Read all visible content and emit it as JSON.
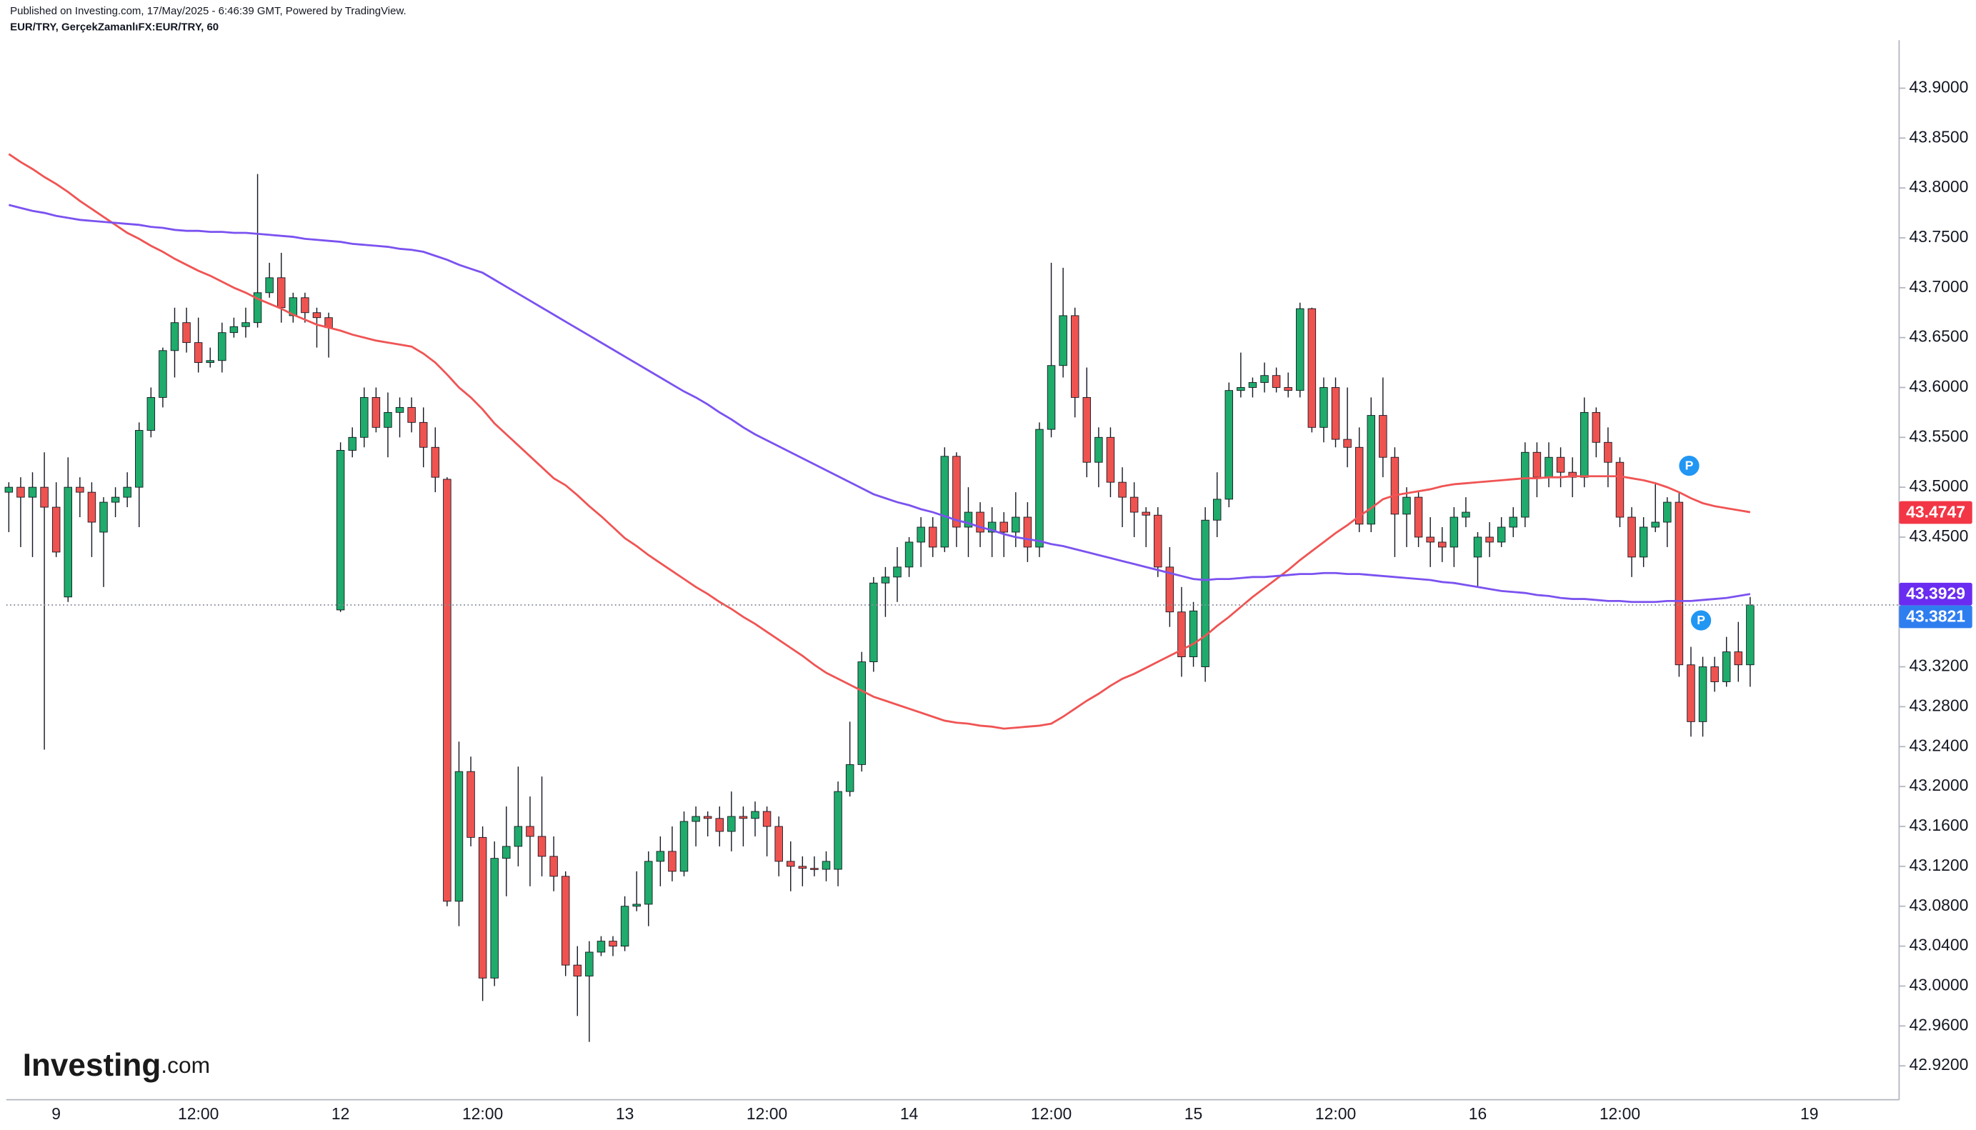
{
  "chart_data": {
    "type": "candlestick",
    "published": "Published on Investing.com, 17/May/2025 - 6:46:39 GMT, Powered by TradingView.",
    "title": "EUR/TRY, GerçekZamanlıFX:EUR/TRY, 60",
    "logo": {
      "brand": "Investing",
      "suffix": ".com"
    },
    "categories": [
      null,
      null,
      null,
      null,
      "9",
      null,
      null,
      null,
      null,
      null,
      null,
      null,
      null,
      null,
      null,
      null,
      "12:00",
      null,
      null,
      null,
      null,
      null,
      null,
      null,
      null,
      null,
      null,
      null,
      "12",
      null,
      null,
      null,
      null,
      null,
      null,
      null,
      null,
      null,
      null,
      null,
      "12:00",
      null,
      null,
      null,
      null,
      null,
      null,
      null,
      null,
      null,
      null,
      null,
      "13",
      null,
      null,
      null,
      null,
      null,
      null,
      null,
      null,
      null,
      null,
      null,
      "12:00",
      null,
      null,
      null,
      null,
      null,
      null,
      null,
      null,
      null,
      null,
      null,
      "14",
      null,
      null,
      null,
      null,
      null,
      null,
      null,
      null,
      null,
      null,
      null,
      "12:00",
      null,
      null,
      null,
      null,
      null,
      null,
      null,
      null,
      null,
      null,
      null,
      "15",
      null,
      null,
      null,
      null,
      null,
      null,
      null,
      null,
      null,
      null,
      null,
      "12:00",
      null,
      null,
      null,
      null,
      null,
      null,
      null,
      null,
      null,
      null,
      null,
      "16",
      null,
      null,
      null,
      null,
      null,
      null,
      null,
      null,
      null,
      null,
      null,
      "12:00",
      null,
      null,
      null,
      null,
      null,
      null,
      null,
      null,
      null,
      null,
      null,
      null,
      null,
      null,
      null,
      "19"
    ],
    "open": [
      43.495,
      43.5,
      43.49,
      43.5,
      43.48,
      43.39,
      43.5,
      43.495,
      43.455,
      43.485,
      43.49,
      43.5,
      43.557,
      43.59,
      43.637,
      43.665,
      43.645,
      43.625,
      43.627,
      43.655,
      43.661,
      43.665,
      43.695,
      43.71,
      43.672,
      43.69,
      43.675,
      43.67,
      43.377,
      43.537,
      43.55,
      43.59,
      43.56,
      43.575,
      43.58,
      43.565,
      43.54,
      43.508,
      43.085,
      43.215,
      43.149,
      43.008,
      43.128,
      43.14,
      43.16,
      43.15,
      43.13,
      43.11,
      43.021,
      43.01,
      43.034,
      43.045,
      43.04,
      43.08,
      43.082,
      43.125,
      43.135,
      43.115,
      43.165,
      43.17,
      43.168,
      43.155,
      43.17,
      43.168,
      43.175,
      43.16,
      43.125,
      43.12,
      43.118,
      43.117,
      43.117,
      43.195,
      43.222,
      43.325,
      43.404,
      43.41,
      43.42,
      43.445,
      43.46,
      43.44,
      43.531,
      43.46,
      43.475,
      43.455,
      43.465,
      43.455,
      43.47,
      43.44,
      43.558,
      43.622,
      43.672,
      43.59,
      43.525,
      43.55,
      43.505,
      43.49,
      43.475,
      43.472,
      43.42,
      43.375,
      43.33,
      43.32,
      43.467,
      43.488,
      43.597,
      43.6,
      43.605,
      43.612,
      43.6,
      43.597,
      43.679,
      43.56,
      43.6,
      43.548,
      43.54,
      43.463,
      43.572,
      43.53,
      43.473,
      43.49,
      43.45,
      43.445,
      43.44,
      43.47,
      43.43,
      43.45,
      43.445,
      43.46,
      43.47,
      43.535,
      43.51,
      43.53,
      43.515,
      43.51,
      43.575,
      43.545,
      43.525,
      43.47,
      43.43,
      43.46,
      43.465,
      43.485,
      43.322,
      43.265,
      43.32,
      43.305,
      43.335,
      43.322,
      null,
      null,
      null,
      null,
      null
    ],
    "high": [
      43.505,
      43.51,
      43.515,
      43.535,
      43.505,
      43.53,
      43.51,
      43.505,
      43.49,
      43.5,
      43.515,
      43.565,
      43.6,
      43.64,
      43.68,
      43.68,
      43.67,
      43.64,
      43.665,
      43.67,
      43.68,
      43.814,
      43.725,
      43.735,
      43.695,
      43.695,
      43.68,
      43.675,
      43.545,
      43.56,
      43.6,
      43.6,
      43.595,
      43.59,
      43.59,
      43.58,
      43.56,
      43.51,
      43.245,
      43.23,
      43.16,
      43.145,
      43.18,
      43.22,
      43.19,
      43.21,
      43.15,
      43.115,
      43.04,
      43.045,
      43.05,
      43.05,
      43.09,
      43.115,
      43.135,
      43.15,
      43.16,
      43.175,
      43.18,
      43.175,
      43.18,
      43.195,
      43.18,
      43.185,
      43.18,
      43.17,
      43.145,
      43.13,
      43.13,
      43.135,
      43.205,
      43.265,
      43.335,
      43.41,
      43.42,
      43.44,
      43.45,
      43.47,
      43.47,
      43.54,
      43.535,
      43.5,
      43.485,
      43.48,
      43.475,
      43.495,
      43.485,
      43.565,
      43.725,
      43.72,
      43.68,
      43.62,
      43.56,
      43.56,
      43.52,
      43.505,
      43.48,
      43.48,
      43.44,
      43.4,
      43.385,
      43.48,
      43.515,
      43.605,
      43.635,
      43.61,
      43.625,
      43.62,
      43.615,
      43.685,
      43.68,
      43.61,
      43.61,
      43.6,
      43.56,
      43.59,
      43.61,
      43.54,
      43.5,
      43.495,
      43.47,
      43.46,
      43.48,
      43.49,
      43.455,
      43.465,
      43.47,
      43.48,
      43.545,
      43.545,
      43.545,
      43.54,
      43.53,
      43.59,
      43.58,
      43.56,
      43.53,
      43.48,
      43.47,
      43.505,
      43.49,
      43.495,
      43.34,
      43.33,
      43.33,
      43.35,
      43.365,
      43.39,
      null,
      null,
      null,
      null,
      null
    ],
    "low": [
      43.455,
      43.44,
      43.43,
      43.237,
      43.43,
      43.385,
      43.47,
      43.43,
      43.4,
      43.47,
      43.48,
      43.46,
      43.55,
      43.58,
      43.61,
      43.635,
      43.615,
      43.62,
      43.615,
      43.65,
      43.65,
      43.66,
      43.69,
      43.665,
      43.665,
      43.665,
      43.64,
      43.63,
      43.375,
      43.53,
      43.54,
      43.555,
      43.53,
      43.55,
      43.555,
      43.52,
      43.495,
      43.08,
      43.06,
      43.14,
      42.985,
      43.0,
      43.09,
      43.12,
      43.1,
      43.11,
      43.095,
      43.01,
      42.97,
      42.944,
      43.03,
      43.03,
      43.035,
      43.075,
      43.06,
      43.1,
      43.105,
      43.11,
      43.14,
      43.15,
      43.14,
      43.135,
      43.14,
      43.15,
      43.13,
      43.11,
      43.095,
      43.1,
      43.11,
      43.105,
      43.1,
      43.19,
      43.215,
      43.315,
      43.37,
      43.385,
      43.41,
      43.42,
      43.43,
      43.435,
      43.44,
      43.43,
      43.44,
      43.43,
      43.43,
      43.44,
      43.425,
      43.43,
      43.55,
      43.61,
      43.57,
      43.51,
      43.5,
      43.49,
      43.46,
      43.45,
      43.44,
      43.41,
      43.36,
      43.31,
      43.32,
      43.305,
      43.45,
      43.48,
      43.59,
      43.59,
      43.595,
      43.595,
      43.59,
      43.59,
      43.555,
      43.545,
      43.54,
      43.52,
      43.455,
      43.455,
      43.51,
      43.43,
      43.44,
      43.44,
      43.42,
      43.425,
      43.42,
      43.46,
      43.4,
      43.43,
      43.44,
      43.45,
      43.46,
      43.49,
      43.5,
      43.5,
      43.49,
      43.5,
      43.53,
      43.5,
      43.46,
      43.41,
      43.42,
      43.455,
      43.44,
      43.31,
      43.25,
      43.25,
      43.295,
      43.3,
      43.305,
      43.3,
      null,
      null,
      null,
      null,
      null
    ],
    "close": [
      43.5,
      43.49,
      43.5,
      43.48,
      43.435,
      43.5,
      43.495,
      43.465,
      43.485,
      43.49,
      43.5,
      43.557,
      43.59,
      43.637,
      43.665,
      43.645,
      43.625,
      43.627,
      43.655,
      43.661,
      43.665,
      43.695,
      43.71,
      43.68,
      43.69,
      43.675,
      43.67,
      43.66,
      43.537,
      43.55,
      43.59,
      43.56,
      43.575,
      43.58,
      43.565,
      43.54,
      43.51,
      43.085,
      43.215,
      43.149,
      43.008,
      43.128,
      43.14,
      43.16,
      43.15,
      43.13,
      43.11,
      43.021,
      43.01,
      43.034,
      43.045,
      43.04,
      43.08,
      43.082,
      43.125,
      43.135,
      43.115,
      43.165,
      43.17,
      43.168,
      43.155,
      43.17,
      43.168,
      43.175,
      43.16,
      43.125,
      43.12,
      43.118,
      43.117,
      43.125,
      43.195,
      43.222,
      43.325,
      43.404,
      43.41,
      43.42,
      43.445,
      43.46,
      43.44,
      43.531,
      43.46,
      43.475,
      43.455,
      43.465,
      43.455,
      43.47,
      43.44,
      43.558,
      43.622,
      43.672,
      43.59,
      43.525,
      43.55,
      43.505,
      43.49,
      43.475,
      43.472,
      43.42,
      43.375,
      43.33,
      43.376,
      43.467,
      43.488,
      43.597,
      43.6,
      43.605,
      43.612,
      43.6,
      43.597,
      43.679,
      43.56,
      43.6,
      43.548,
      43.54,
      43.463,
      43.572,
      43.53,
      43.473,
      43.49,
      43.45,
      43.445,
      43.44,
      43.47,
      43.475,
      43.45,
      43.445,
      43.46,
      43.47,
      43.535,
      43.51,
      43.53,
      43.515,
      43.51,
      43.575,
      43.545,
      43.525,
      43.47,
      43.43,
      43.46,
      43.465,
      43.485,
      43.322,
      43.265,
      43.32,
      43.305,
      43.335,
      43.322,
      43.382,
      null,
      null,
      null,
      null,
      null
    ],
    "up_color": "#1fab6b",
    "down_color": "#ef5350",
    "overlays": [
      {
        "color": "#f05454",
        "values": [
          43.834,
          43.826,
          43.819,
          43.811,
          43.804,
          43.796,
          43.787,
          43.779,
          43.771,
          43.763,
          43.755,
          43.749,
          43.742,
          43.736,
          43.729,
          43.723,
          43.717,
          43.712,
          43.706,
          43.7,
          43.695,
          43.689,
          43.684,
          43.679,
          43.673,
          43.668,
          43.663,
          43.66,
          43.657,
          43.653,
          43.65,
          43.647,
          43.645,
          43.643,
          43.641,
          43.634,
          43.625,
          43.613,
          43.6,
          43.59,
          43.578,
          43.564,
          43.553,
          43.542,
          43.531,
          43.52,
          43.509,
          43.502,
          43.492,
          43.481,
          43.471,
          43.46,
          43.449,
          43.441,
          43.432,
          43.424,
          43.416,
          43.408,
          43.4,
          43.393,
          43.385,
          43.378,
          43.37,
          43.363,
          43.355,
          43.347,
          43.339,
          43.331,
          43.322,
          43.314,
          43.308,
          43.302,
          43.296,
          43.29,
          43.286,
          43.282,
          43.278,
          43.274,
          43.27,
          43.266,
          43.264,
          43.263,
          43.261,
          43.26,
          43.258,
          43.259,
          43.26,
          43.261,
          43.263,
          43.27,
          43.278,
          43.286,
          43.293,
          43.301,
          43.308,
          43.313,
          43.319,
          43.325,
          43.331,
          43.337,
          43.343,
          43.351,
          43.361,
          43.37,
          43.38,
          43.39,
          43.399,
          43.408,
          43.417,
          43.427,
          43.436,
          43.445,
          43.454,
          43.462,
          43.471,
          43.479,
          43.488,
          43.492,
          43.494,
          43.496,
          43.498,
          43.501,
          43.503,
          43.504,
          43.505,
          43.506,
          43.507,
          43.508,
          43.509,
          43.509,
          43.51,
          43.51,
          43.511,
          43.511,
          43.511,
          43.511,
          43.511,
          43.509,
          43.507,
          43.504,
          43.5,
          43.495,
          43.489,
          43.484,
          43.481,
          43.479,
          43.477,
          43.475,
          null,
          null,
          null,
          null,
          null
        ]
      },
      {
        "color": "#7b52f0",
        "values": [
          43.783,
          43.78,
          43.777,
          43.775,
          43.772,
          43.77,
          43.768,
          43.767,
          43.766,
          43.765,
          43.764,
          43.763,
          43.761,
          43.76,
          43.758,
          43.757,
          43.757,
          43.756,
          43.756,
          43.755,
          43.755,
          43.754,
          43.753,
          43.752,
          43.751,
          43.749,
          43.748,
          43.747,
          43.746,
          43.744,
          43.743,
          43.742,
          43.741,
          43.739,
          43.738,
          43.736,
          43.732,
          43.728,
          43.723,
          43.719,
          43.715,
          43.708,
          43.701,
          43.694,
          43.687,
          43.68,
          43.673,
          43.666,
          43.659,
          43.652,
          43.645,
          43.638,
          43.631,
          43.624,
          43.617,
          43.61,
          43.603,
          43.596,
          43.59,
          43.583,
          43.575,
          43.568,
          43.56,
          43.553,
          43.547,
          43.541,
          43.535,
          43.529,
          43.523,
          43.517,
          43.511,
          43.505,
          43.499,
          43.493,
          43.489,
          43.485,
          43.482,
          43.478,
          43.475,
          43.471,
          43.467,
          43.464,
          43.46,
          43.457,
          43.453,
          43.45,
          43.448,
          43.446,
          43.443,
          43.441,
          43.438,
          43.435,
          43.432,
          43.429,
          43.426,
          43.423,
          43.42,
          43.417,
          43.414,
          43.411,
          43.408,
          43.407,
          43.408,
          43.408,
          43.409,
          43.41,
          43.41,
          43.411,
          43.412,
          43.413,
          43.413,
          43.414,
          43.414,
          43.413,
          43.413,
          43.412,
          43.411,
          43.41,
          43.409,
          43.408,
          43.407,
          43.405,
          43.404,
          43.402,
          43.4,
          43.398,
          43.396,
          43.395,
          43.394,
          43.392,
          43.391,
          43.389,
          43.388,
          43.388,
          43.387,
          43.386,
          43.386,
          43.385,
          43.385,
          43.385,
          43.386,
          43.386,
          43.386,
          43.387,
          43.388,
          43.389,
          43.391,
          43.393,
          null,
          null,
          null,
          null,
          null
        ]
      }
    ],
    "price_labels": [
      {
        "value": 43.4747,
        "color": "#f23645"
      },
      {
        "value": 43.3929,
        "color": "#6a2cf0"
      },
      {
        "value": 43.3821,
        "color": "#2f7ef0"
      }
    ],
    "events": [
      {
        "text": "P",
        "candle": 141
      },
      {
        "text": "P",
        "candle": 142
      }
    ],
    "event_color": "#2196f3",
    "last_price_line": true,
    "ylim": [
      42.886,
      43.948
    ],
    "yticks": [
      {
        "value": 43.9,
        "label": "43.9000"
      },
      {
        "value": 43.85,
        "label": "43.8500"
      },
      {
        "value": 43.8,
        "label": "43.8000"
      },
      {
        "value": 43.75,
        "label": "43.7500"
      },
      {
        "value": 43.7,
        "label": "43.7000"
      },
      {
        "value": 43.65,
        "label": "43.6500"
      },
      {
        "value": 43.6,
        "label": "43.6000"
      },
      {
        "value": 43.55,
        "label": "43.5500"
      },
      {
        "value": 43.5,
        "label": "43.5000"
      },
      {
        "value": 43.45,
        "label": "43.4500"
      },
      {
        "value": 43.32,
        "label": "43.3200"
      },
      {
        "value": 43.28,
        "label": "43.2800"
      },
      {
        "value": 43.24,
        "label": "43.2400"
      },
      {
        "value": 43.2,
        "label": "43.2000"
      },
      {
        "value": 43.16,
        "label": "43.1600"
      },
      {
        "value": 43.12,
        "label": "43.1200"
      },
      {
        "value": 43.08,
        "label": "43.0800"
      },
      {
        "value": 43.04,
        "label": "43.0400"
      },
      {
        "value": 43.0,
        "label": "43.0000"
      },
      {
        "value": 42.96,
        "label": "42.9600"
      },
      {
        "value": 42.92,
        "label": "42.9200"
      }
    ]
  }
}
